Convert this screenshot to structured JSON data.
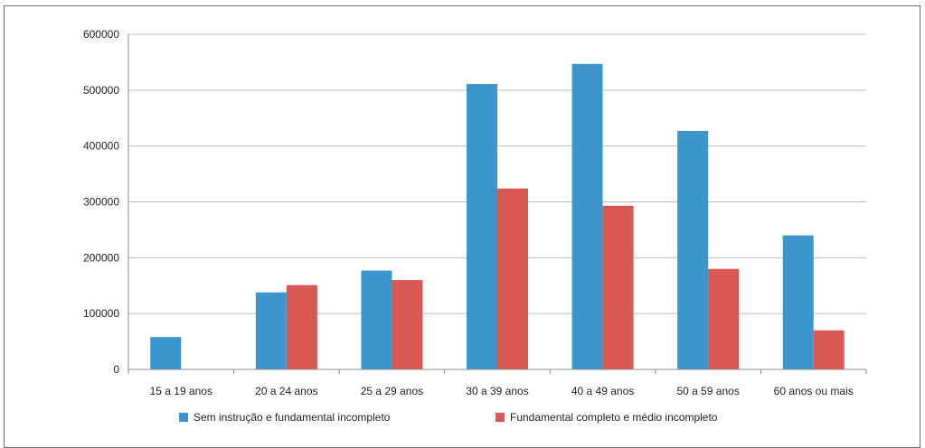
{
  "chart_data": {
    "type": "bar",
    "title": "",
    "xlabel": "",
    "ylabel": "",
    "categories": [
      "15 a 19 anos",
      "20 a 24 anos",
      "25 a 29 anos",
      "30 a 39 anos",
      "40 a 49 anos",
      "50 a 59 anos",
      "60 anos ou mais"
    ],
    "series": [
      {
        "name": "Sem instrução e fundamental incompleto",
        "color": "#3c96cd",
        "values": [
          58000,
          138000,
          177000,
          511000,
          547000,
          427000,
          240000
        ]
      },
      {
        "name": "Fundamental completo e médio incompleto",
        "color": "#d95853",
        "values": [
          0,
          151000,
          160000,
          324000,
          293000,
          180000,
          70000
        ]
      }
    ],
    "ylim": [
      0,
      600000
    ],
    "yticks": [
      "0",
      "100000",
      "200000",
      "300000",
      "400000",
      "500000",
      "600000"
    ],
    "grid": true,
    "legend_position": "bottom"
  }
}
